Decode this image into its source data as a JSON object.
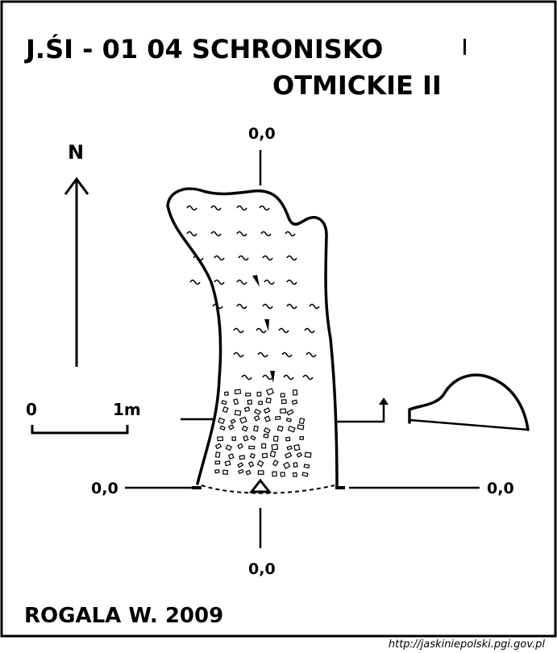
{
  "title": {
    "line1": "J.ŚI - 01 04  SCHRONISKO",
    "line2": "OTMICKIE II"
  },
  "north_label": "N",
  "scale": {
    "zero": "0",
    "one": "1m"
  },
  "axis_labels": {
    "top": "0,0",
    "bottom": "0,0",
    "left": "0,0",
    "right": "0,0"
  },
  "author": "ROGALA W. 2009",
  "source_url": "http://jaskiniepolski.pgi.gov.pl"
}
